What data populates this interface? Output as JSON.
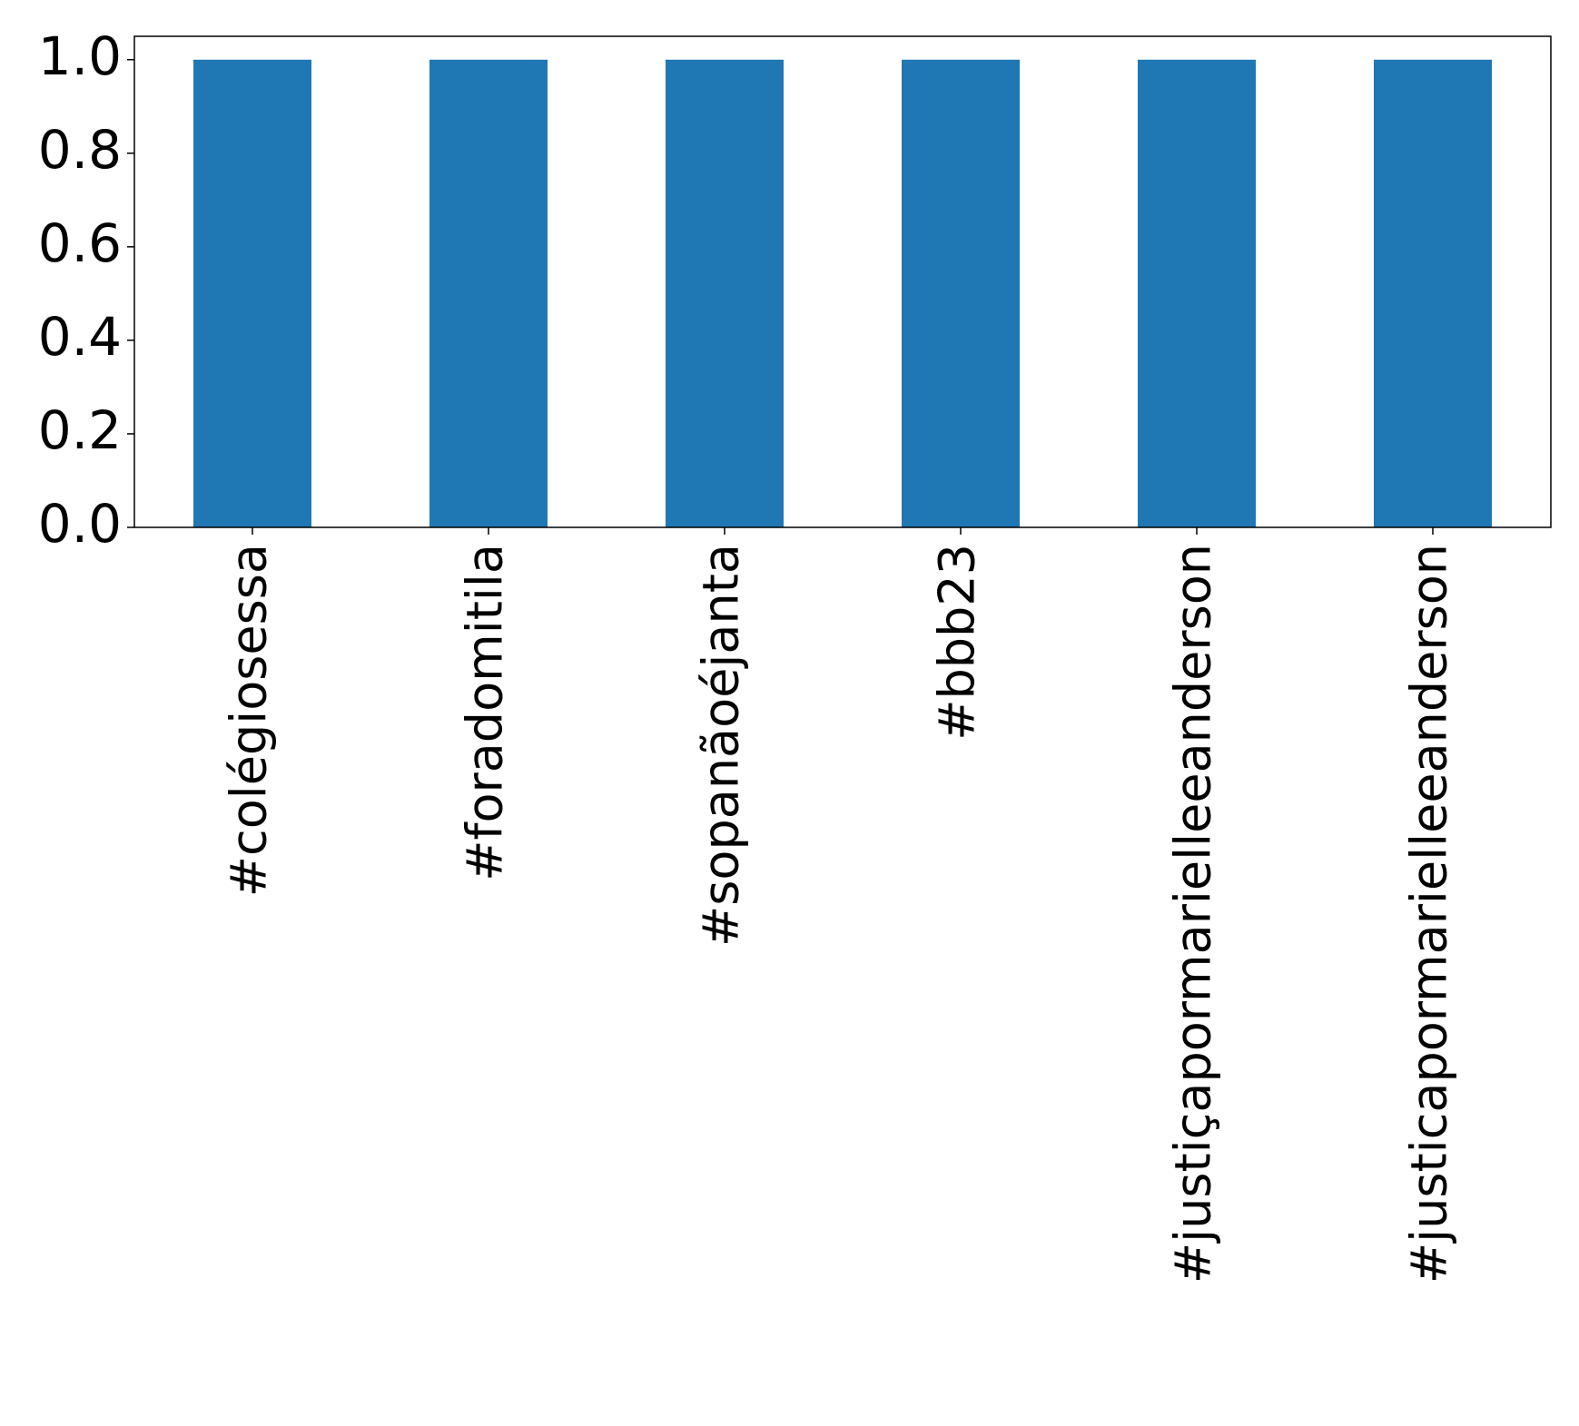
{
  "chart_data": {
    "type": "bar",
    "categories": [
      "#colégiosessa",
      "#foradomitila",
      "#sopanãoéjanta",
      "#bbb23",
      "#justiçapormarielleeanderson",
      "#justicapormarielleeanderson"
    ],
    "values": [
      1,
      1,
      1,
      1,
      1,
      1
    ],
    "color": "#1f77b4",
    "ylim": [
      0,
      1.05
    ],
    "yticks": [
      {
        "value": 0,
        "label": "0.0"
      },
      {
        "value": 0.2,
        "label": "0.2"
      },
      {
        "value": 0.4,
        "label": "0.4"
      },
      {
        "value": 0.6,
        "label": "0.6"
      },
      {
        "value": 0.8,
        "label": "0.8"
      },
      {
        "value": 1,
        "label": "1.0"
      }
    ],
    "grid": false
  }
}
